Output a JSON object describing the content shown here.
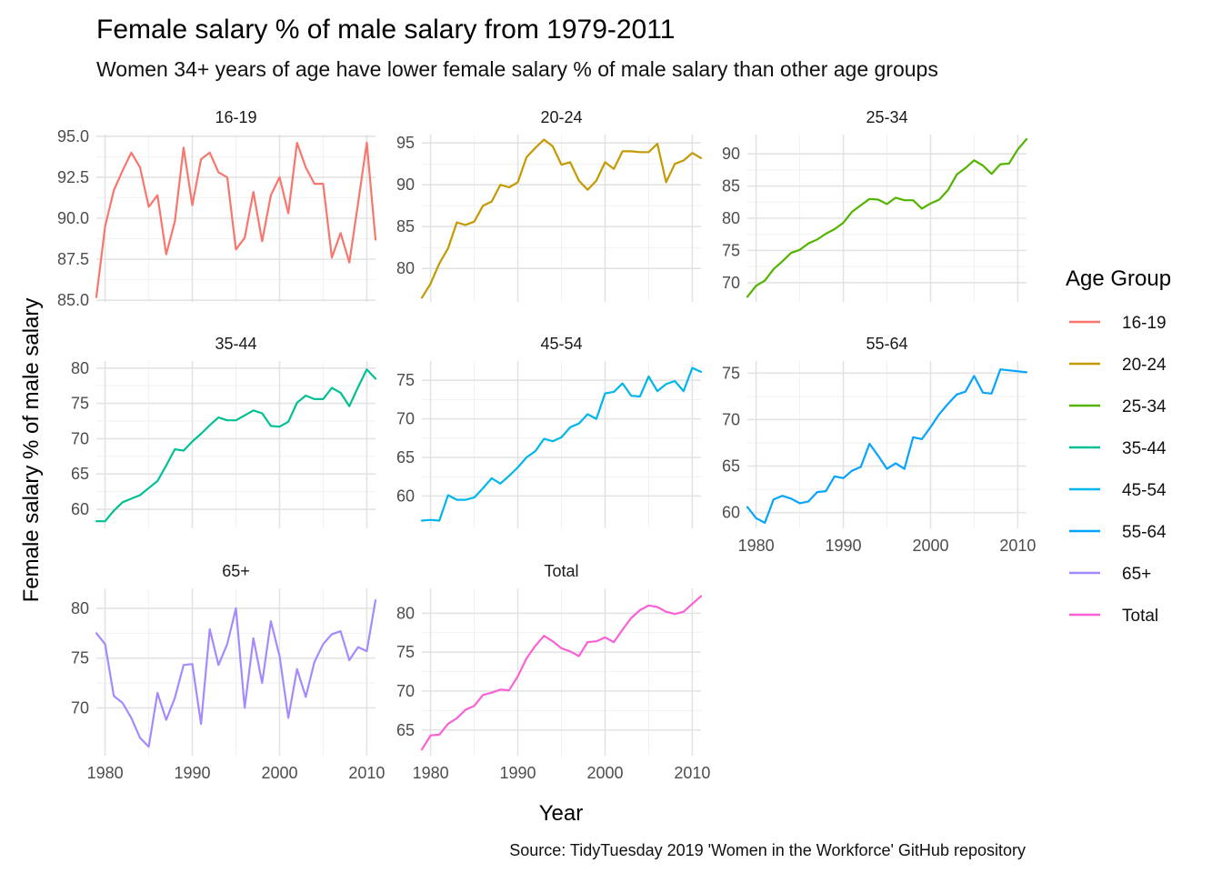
{
  "title": "Female salary % of male salary from 1979-2011",
  "subtitle": "Women 34+ years of age have lower female salary % of male salary than other age groups",
  "caption": "Source: TidyTuesday 2019 'Women in the Workforce' GitHub repository",
  "chart_data": {
    "type": "line",
    "layout": "facet_wrap",
    "facet_columns": 3,
    "scales": "free_y",
    "xlabel": "Year",
    "ylabel": "Female salary % of male salary",
    "legend_title": "Age Group",
    "legend_position": "right",
    "grid": true,
    "xlim": [
      1979,
      2011
    ],
    "x_ticks": [
      "1980",
      "1990",
      "2000",
      "2010"
    ],
    "years": [
      1979,
      1980,
      1981,
      1982,
      1983,
      1984,
      1985,
      1986,
      1987,
      1988,
      1989,
      1990,
      1991,
      1992,
      1993,
      1994,
      1995,
      1996,
      1997,
      1998,
      1999,
      2000,
      2001,
      2002,
      2003,
      2004,
      2005,
      2006,
      2007,
      2008,
      2009,
      2010,
      2011
    ],
    "series": [
      {
        "name": "16-19",
        "color": "#F8766D",
        "ylim": [
          84.9,
          95.1
        ],
        "y_ticks": [
          "85.0",
          "87.5",
          "90.0",
          "92.5",
          "95.0"
        ],
        "y_tick_values": [
          85,
          87.5,
          90,
          92.5,
          95
        ],
        "values": [
          85.2,
          89.5,
          91.7,
          92.9,
          94.0,
          93.1,
          90.7,
          91.4,
          87.8,
          89.8,
          94.3,
          90.8,
          93.6,
          94.0,
          92.8,
          92.5,
          88.1,
          88.8,
          91.6,
          88.6,
          91.4,
          92.5,
          90.3,
          94.6,
          93.1,
          92.1,
          92.1,
          87.6,
          89.1,
          87.3,
          90.9,
          94.6,
          88.7
        ]
      },
      {
        "name": "20-24",
        "color": "#C49A00",
        "ylim": [
          76.0,
          96.0
        ],
        "y_ticks": [
          "80",
          "85",
          "90",
          "95"
        ],
        "y_tick_values": [
          80,
          85,
          90,
          95
        ],
        "values": [
          76.5,
          78.2,
          80.6,
          82.4,
          85.5,
          85.2,
          85.6,
          87.5,
          88.0,
          90.0,
          89.7,
          90.3,
          93.3,
          94.4,
          95.4,
          94.6,
          92.4,
          92.7,
          90.5,
          89.4,
          90.5,
          92.7,
          91.9,
          94.0,
          94.0,
          93.9,
          93.9,
          94.9,
          90.3,
          92.5,
          92.9,
          93.8,
          93.2
        ]
      },
      {
        "name": "25-34",
        "color": "#53B400",
        "ylim": [
          67.0,
          93.0
        ],
        "y_ticks": [
          "70",
          "75",
          "80",
          "85",
          "90"
        ],
        "y_tick_values": [
          70,
          75,
          80,
          85,
          90
        ],
        "values": [
          67.8,
          69.5,
          70.3,
          72.1,
          73.3,
          74.6,
          75.1,
          76.1,
          76.7,
          77.6,
          78.3,
          79.3,
          81.0,
          82.0,
          83.0,
          82.9,
          82.2,
          83.2,
          82.8,
          82.8,
          81.5,
          82.3,
          82.9,
          84.4,
          86.8,
          87.8,
          89.0,
          88.2,
          86.9,
          88.4,
          88.5,
          90.7,
          92.3
        ]
      },
      {
        "name": "35-44",
        "color": "#00C094",
        "ylim": [
          57.3,
          81.0
        ],
        "y_ticks": [
          "60",
          "65",
          "70",
          "75",
          "80"
        ],
        "y_tick_values": [
          60,
          65,
          70,
          75,
          80
        ],
        "values": [
          58.3,
          58.3,
          59.8,
          61.0,
          61.5,
          62.0,
          63.0,
          64.0,
          66.2,
          68.5,
          68.3,
          69.6,
          70.7,
          71.9,
          73.0,
          72.6,
          72.6,
          73.3,
          74.0,
          73.6,
          71.8,
          71.7,
          72.4,
          75.1,
          76.1,
          75.6,
          75.6,
          77.2,
          76.5,
          74.6,
          77.3,
          79.8,
          78.5
        ]
      },
      {
        "name": "45-54",
        "color": "#00B6EB",
        "ylim": [
          55.8,
          77.5
        ],
        "y_ticks": [
          "60",
          "65",
          "70",
          "75"
        ],
        "y_tick_values": [
          60,
          65,
          70,
          75
        ],
        "values": [
          56.8,
          56.9,
          56.8,
          60.1,
          59.5,
          59.5,
          59.8,
          61.0,
          62.3,
          61.6,
          62.6,
          63.7,
          65.0,
          65.8,
          67.4,
          67.1,
          67.6,
          68.9,
          69.4,
          70.6,
          70.0,
          73.3,
          73.5,
          74.6,
          73.0,
          72.9,
          75.5,
          73.6,
          74.5,
          74.9,
          73.6,
          76.6,
          76.1
        ]
      },
      {
        "name": "55-64",
        "color": "#06A4FF",
        "ylim": [
          58.3,
          76.3
        ],
        "y_ticks": [
          "60",
          "65",
          "70",
          "75"
        ],
        "y_tick_values": [
          60,
          65,
          70,
          75
        ],
        "values": [
          60.6,
          59.4,
          58.9,
          61.4,
          61.8,
          61.5,
          61.0,
          61.2,
          62.2,
          62.3,
          63.9,
          63.7,
          64.5,
          64.9,
          67.4,
          66.1,
          64.7,
          65.3,
          64.7,
          68.1,
          67.9,
          69.2,
          70.6,
          71.7,
          72.7,
          73.0,
          74.7,
          72.9,
          72.8,
          75.4,
          null,
          null,
          75.1
        ]
      },
      {
        "name": "65+",
        "color": "#A58AFF",
        "ylim": [
          65.2,
          82.0
        ],
        "y_ticks": [
          "70",
          "75",
          "80"
        ],
        "y_tick_values": [
          70,
          75,
          80
        ],
        "values": [
          77.5,
          76.4,
          71.2,
          70.5,
          69.0,
          67.0,
          66.1,
          71.5,
          68.8,
          71.0,
          74.3,
          74.4,
          68.4,
          77.9,
          74.3,
          76.4,
          80.0,
          70.0,
          77.0,
          72.5,
          78.7,
          75.2,
          69.0,
          73.9,
          71.1,
          74.6,
          76.4,
          77.4,
          77.7,
          74.8,
          76.1,
          75.7,
          80.8
        ]
      },
      {
        "name": "Total",
        "color": "#FB61D7",
        "ylim": [
          61.7,
          83.2
        ],
        "y_ticks": [
          "65",
          "70",
          "75",
          "80"
        ],
        "y_tick_values": [
          65,
          70,
          75,
          80
        ],
        "values": [
          62.5,
          64.3,
          64.4,
          65.8,
          66.5,
          67.6,
          68.1,
          69.5,
          69.8,
          70.2,
          70.1,
          71.9,
          74.2,
          75.8,
          77.1,
          76.4,
          75.5,
          75.1,
          74.5,
          76.3,
          76.4,
          76.9,
          76.3,
          77.9,
          79.4,
          80.4,
          81.0,
          80.8,
          80.2,
          79.9,
          80.2,
          81.2,
          82.2
        ]
      }
    ]
  }
}
